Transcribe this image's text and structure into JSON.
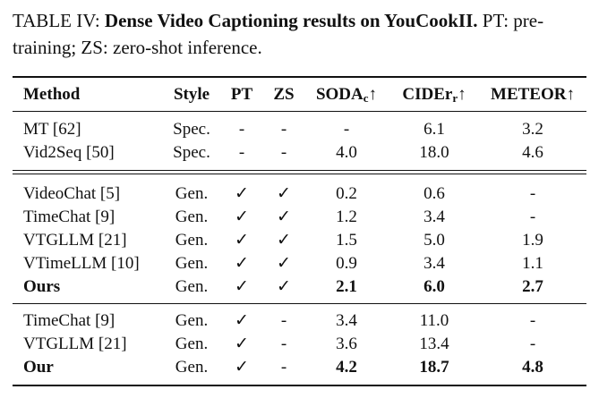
{
  "caption": {
    "label": "TABLE IV:",
    "title": "Dense Video Captioning results on YouCookII.",
    "note": "PT: pre-training; ZS: zero-shot inference."
  },
  "header": {
    "method": "Method",
    "style": "Style",
    "pt": "PT",
    "zs": "ZS",
    "soda_main": "SODA",
    "soda_sub": "c",
    "cider_main": "CIDEr",
    "cider_sub": "r",
    "meteor": "METEOR",
    "arrow": "↑"
  },
  "groups": [
    {
      "rows": [
        {
          "method": "MT [62]",
          "style": "Spec.",
          "pt": "-",
          "zs": "-",
          "soda": "-",
          "cider": "6.1",
          "meteor": "3.2"
        },
        {
          "method": "Vid2Seq [50]",
          "style": "Spec.",
          "pt": "-",
          "zs": "-",
          "soda": "4.0",
          "cider": "18.0",
          "meteor": "4.6"
        }
      ]
    },
    {
      "rows": [
        {
          "method": "VideoChat [5]",
          "style": "Gen.",
          "pt": "✓",
          "zs": "✓",
          "soda": "0.2",
          "cider": "0.6",
          "meteor": "-"
        },
        {
          "method": "TimeChat [9]",
          "style": "Gen.",
          "pt": "✓",
          "zs": "✓",
          "soda": "1.2",
          "cider": "3.4",
          "meteor": "-"
        },
        {
          "method": "VTGLLM [21]",
          "style": "Gen.",
          "pt": "✓",
          "zs": "✓",
          "soda": "1.5",
          "cider": "5.0",
          "meteor": "1.9"
        },
        {
          "method": "VTimeLLM [10]",
          "style": "Gen.",
          "pt": "✓",
          "zs": "✓",
          "soda": "0.9",
          "cider": "3.4",
          "meteor": "1.1"
        },
        {
          "method": "Ours",
          "style": "Gen.",
          "pt": "✓",
          "zs": "✓",
          "soda": "2.1",
          "cider": "6.0",
          "meteor": "2.7"
        }
      ]
    },
    {
      "rows": [
        {
          "method": "TimeChat [9]",
          "style": "Gen.",
          "pt": "✓",
          "zs": "-",
          "soda": "3.4",
          "cider": "11.0",
          "meteor": "-"
        },
        {
          "method": "VTGLLM [21]",
          "style": "Gen.",
          "pt": "✓",
          "zs": "-",
          "soda": "3.6",
          "cider": "13.4",
          "meteor": "-"
        },
        {
          "method": "Our",
          "style": "Gen.",
          "pt": "✓",
          "zs": "-",
          "soda": "4.2",
          "cider": "18.7",
          "meteor": "4.8"
        }
      ]
    }
  ]
}
